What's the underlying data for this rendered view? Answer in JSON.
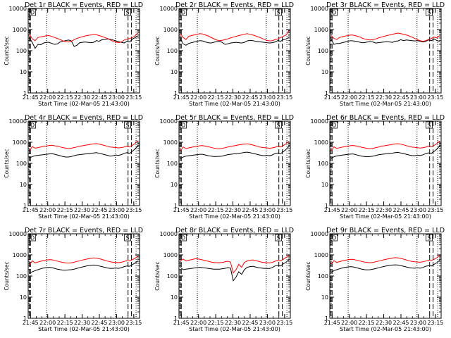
{
  "chart_data": {
    "type": "line",
    "x_start": "21:43:00",
    "x_end": "23:20:00",
    "x_ticks": [
      "21:45",
      "22:00",
      "22:15",
      "22:30",
      "22:45",
      "23:00",
      "23:15"
    ],
    "xlabel": "Start Time (02-Mar-05 21:43:00)",
    "ylabel": "Counts/sec",
    "yscale": "log",
    "ylim": [
      1,
      10000
    ],
    "y_ticks": [
      "1",
      "10",
      "100",
      "1000",
      "10000"
    ],
    "dotted_markers": [
      "21:59",
      "22:59",
      "23:17"
    ],
    "dashed_markers": [
      "21:44",
      "21:45",
      "23:10",
      "23:13"
    ],
    "box_labels": [
      "D",
      "S"
    ],
    "panels": [
      {
        "title": "Det 1r BLACK = Events, RED = LLD",
        "series": [
          {
            "name": "Events",
            "color": "#000000",
            "values": [
              400,
              240,
              130,
              200,
              190,
              230,
              250,
              250,
              220,
              200,
              210,
              260,
              280,
              300,
              320,
              290,
              160,
              180,
              240,
              250,
              260,
              250,
              240,
              250,
              300,
              280,
              330,
              340,
              360,
              350,
              320,
              290,
              270,
              250,
              230,
              280,
              260,
              360,
              420,
              500
            ]
          },
          {
            "name": "LLD",
            "color": "#ff0000",
            "values": [
              600,
              360,
              300,
              420,
              450,
              480,
              510,
              520,
              470,
              420,
              380,
              340,
              290,
              270,
              260,
              280,
              330,
              380,
              420,
              460,
              500,
              530,
              560,
              600,
              570,
              520,
              480,
              420,
              380,
              320,
              280,
              260,
              240,
              260,
              320,
              350,
              380,
              420,
              520,
              700
            ]
          }
        ]
      },
      {
        "title": "Det 2r BLACK = Events, RED = LLD",
        "series": [
          {
            "name": "Events",
            "color": "#000000",
            "values": [
              380,
              210,
              180,
              220,
              240,
              260,
              280,
              300,
              290,
              260,
              240,
              230,
              250,
              270,
              280,
              250,
              200,
              210,
              230,
              240,
              250,
              240,
              230,
              250,
              290,
              310,
              300,
              280,
              270,
              260,
              250,
              240,
              230,
              240,
              260,
              300,
              280,
              330,
              360,
              420
            ]
          },
          {
            "name": "LLD",
            "color": "#ff0000",
            "values": [
              640,
              420,
              340,
              480,
              520,
              560,
              600,
              640,
              620,
              560,
              500,
              430,
              370,
              320,
              300,
              310,
              330,
              360,
              400,
              440,
              480,
              520,
              560,
              600,
              640,
              600,
              560,
              500,
              450,
              400,
              350,
              310,
              290,
              300,
              330,
              360,
              420,
              480,
              560,
              900
            ]
          }
        ]
      },
      {
        "title": "Det 3r BLACK = Events, RED = LLD",
        "series": [
          {
            "name": "Events",
            "color": "#000000",
            "values": [
              350,
              200,
              220,
              220,
              240,
              260,
              280,
              300,
              290,
              280,
              260,
              240,
              240,
              260,
              270,
              260,
              230,
              240,
              250,
              260,
              270,
              260,
              250,
              280,
              290,
              330,
              300,
              320,
              310,
              300,
              290,
              300,
              280,
              260,
              280,
              320,
              300,
              360,
              300,
              280
            ]
          },
          {
            "name": "LLD",
            "color": "#ff0000",
            "values": [
              520,
              380,
              340,
              420,
              460,
              490,
              520,
              560,
              540,
              500,
              460,
              400,
              360,
              330,
              320,
              330,
              360,
              400,
              440,
              480,
              520,
              560,
              600,
              640,
              680,
              640,
              600,
              560,
              500,
              440,
              380,
              330,
              300,
              280,
              300,
              340,
              380,
              440,
              400,
              520
            ]
          }
        ]
      },
      {
        "title": "Det 4r BLACK = Events, RED = LLD",
        "series": [
          {
            "name": "Events",
            "color": "#000000",
            "values": [
              180,
              210,
              230,
              240,
              250,
              260,
              270,
              280,
              290,
              270,
              250,
              230,
              210,
              200,
              200,
              210,
              230,
              250,
              260,
              270,
              280,
              290,
              300,
              310,
              320,
              300,
              280,
              260,
              240,
              220,
              230,
              250,
              240,
              260,
              300,
              320,
              300,
              380,
              500,
              700
            ]
          },
          {
            "name": "LLD",
            "color": "#ff0000",
            "values": [
              400,
              620,
              520,
              560,
              600,
              630,
              660,
              700,
              720,
              680,
              640,
              600,
              560,
              520,
              500,
              520,
              560,
              600,
              640,
              680,
              720,
              760,
              800,
              840,
              860,
              820,
              760,
              700,
              640,
              600,
              580,
              560,
              540,
              560,
              600,
              660,
              620,
              720,
              900,
              1200
            ]
          }
        ]
      },
      {
        "title": "Det 5r BLACK = Events, RED = LLD",
        "series": [
          {
            "name": "Events",
            "color": "#000000",
            "values": [
              170,
              200,
              220,
              230,
              240,
              250,
              260,
              270,
              270,
              250,
              230,
              220,
              210,
              210,
              215,
              220,
              240,
              260,
              270,
              280,
              290,
              300,
              310,
              330,
              340,
              320,
              300,
              280,
              260,
              240,
              230,
              240,
              230,
              250,
              290,
              310,
              290,
              360,
              460,
              650
            ]
          },
          {
            "name": "LLD",
            "color": "#ff0000",
            "values": [
              380,
              600,
              500,
              540,
              580,
              610,
              640,
              680,
              690,
              650,
              610,
              570,
              530,
              500,
              490,
              510,
              550,
              590,
              630,
              670,
              710,
              750,
              790,
              820,
              840,
              800,
              740,
              680,
              620,
              580,
              560,
              540,
              520,
              540,
              580,
              640,
              600,
              700,
              850,
              1100
            ]
          }
        ]
      },
      {
        "title": "Det 6r BLACK = Events, RED = LLD",
        "series": [
          {
            "name": "Events",
            "color": "#000000",
            "values": [
              170,
              205,
              225,
              235,
              245,
              255,
              265,
              275,
              275,
              255,
              235,
              220,
              210,
              205,
              210,
              220,
              235,
              255,
              265,
              275,
              285,
              295,
              305,
              320,
              330,
              310,
              290,
              270,
              250,
              235,
              230,
              245,
              235,
              255,
              290,
              315,
              300,
              370,
              480,
              680
            ]
          },
          {
            "name": "LLD",
            "color": "#ff0000",
            "values": [
              390,
              610,
              510,
              550,
              590,
              620,
              650,
              690,
              700,
              660,
              620,
              580,
              540,
              510,
              495,
              515,
              555,
              595,
              635,
              675,
              715,
              755,
              795,
              830,
              850,
              810,
              750,
              690,
              630,
              590,
              570,
              550,
              530,
              550,
              590,
              650,
              610,
              710,
              870,
              1150
            ]
          }
        ]
      },
      {
        "title": "Det 7r BLACK = Events, RED = LLD",
        "series": [
          {
            "name": "Events",
            "color": "#000000",
            "values": [
              140,
              160,
              180,
              200,
              220,
              240,
              250,
              260,
              250,
              230,
              210,
              200,
              190,
              190,
              195,
              200,
              210,
              230,
              250,
              270,
              290,
              310,
              320,
              330,
              320,
              300,
              280,
              260,
              240,
              230,
              230,
              240,
              230,
              250,
              280,
              300,
              290,
              350,
              420,
              520
            ]
          },
          {
            "name": "LLD",
            "color": "#ff0000",
            "values": [
              340,
              520,
              420,
              460,
              500,
              540,
              570,
              600,
              590,
              550,
              510,
              470,
              440,
              420,
              410,
              420,
              450,
              490,
              530,
              570,
              610,
              650,
              690,
              720,
              700,
              660,
              610,
              560,
              510,
              470,
              450,
              440,
              430,
              450,
              490,
              540,
              520,
              600,
              700,
              900
            ]
          }
        ]
      },
      {
        "title": "Det 8r BLACK = Events, RED = LLD",
        "series": [
          {
            "name": "Events",
            "color": "#000000",
            "values": [
              260,
              200,
              210,
              220,
              230,
              240,
              250,
              260,
              250,
              240,
              230,
              220,
              210,
              210,
              210,
              220,
              230,
              250,
              240,
              60,
              90,
              160,
              120,
              200,
              260,
              280,
              290,
              270,
              250,
              240,
              230,
              230,
              225,
              250,
              300,
              320,
              300,
              380,
              450,
              600
            ]
          },
          {
            "name": "LLD",
            "color": "#ff0000",
            "values": [
              520,
              640,
              520,
              560,
              600,
              640,
              660,
              620,
              580,
              540,
              500,
              460,
              440,
              430,
              430,
              440,
              470,
              500,
              460,
              140,
              200,
              360,
              260,
              440,
              520,
              560,
              580,
              540,
              500,
              460,
              440,
              430,
              420,
              440,
              500,
              560,
              520,
              620,
              760,
              950
            ]
          }
        ]
      },
      {
        "title": "Det 9r BLACK = Events, RED = LLD",
        "series": [
          {
            "name": "Events",
            "color": "#000000",
            "values": [
              150,
              180,
              200,
              220,
              240,
              260,
              270,
              280,
              270,
              250,
              230,
              210,
              200,
              195,
              200,
              210,
              225,
              245,
              265,
              285,
              305,
              320,
              330,
              340,
              330,
              310,
              290,
              270,
              250,
              240,
              235,
              245,
              235,
              255,
              290,
              310,
              300,
              360,
              430,
              560
            ]
          },
          {
            "name": "LLD",
            "color": "#ff0000",
            "values": [
              360,
              540,
              440,
              480,
              520,
              560,
              590,
              620,
              610,
              570,
              530,
              490,
              460,
              440,
              430,
              440,
              470,
              510,
              550,
              590,
              630,
              670,
              710,
              740,
              720,
              680,
              630,
              580,
              530,
              490,
              470,
              460,
              450,
              470,
              510,
              560,
              540,
              620,
              740,
              960
            ]
          }
        ]
      }
    ]
  }
}
